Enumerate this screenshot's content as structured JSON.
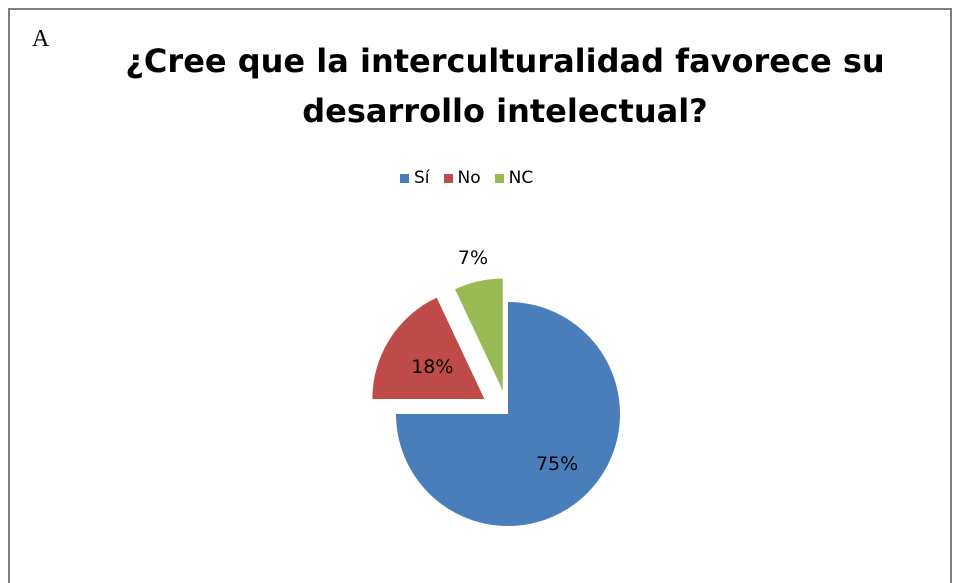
{
  "panel_letter": "A",
  "chart_data": {
    "type": "pie",
    "title": "¿Cree que la interculturalidad favorece su desarrollo intelectual?",
    "title_lines": [
      "¿Cree que la interculturalidad favorece su",
      "desarrollo intelectual?"
    ],
    "categories": [
      "Sí",
      "No",
      "NC"
    ],
    "values": [
      75,
      18,
      7
    ],
    "data_labels": [
      "75%",
      "18%",
      "7%"
    ],
    "colors": [
      "#4a7ebb",
      "#be4b48",
      "#98b954"
    ],
    "legend_position": "top",
    "exploded": true
  }
}
